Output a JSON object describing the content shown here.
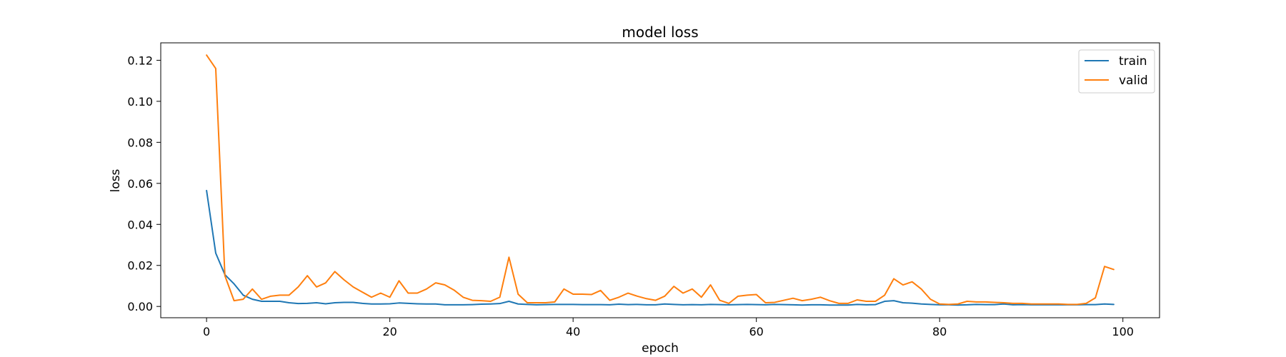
{
  "chart_data": {
    "type": "line",
    "title": "model loss",
    "xlabel": "epoch",
    "ylabel": "loss",
    "xlim": [
      -5,
      104
    ],
    "ylim": [
      -0.0055,
      0.1285
    ],
    "xticks": [
      0,
      20,
      40,
      60,
      80,
      100
    ],
    "xtick_labels": [
      "0",
      "20",
      "40",
      "60",
      "80",
      "100"
    ],
    "yticks": [
      0.0,
      0.02,
      0.04,
      0.06,
      0.08,
      0.1,
      0.12
    ],
    "ytick_labels": [
      "0.00",
      "0.02",
      "0.04",
      "0.06",
      "0.08",
      "0.10",
      "0.12"
    ],
    "grid": false,
    "legend_position": "top-right",
    "series": [
      {
        "name": "train",
        "color": "#1f77b4",
        "x": [
          0,
          1,
          2,
          3,
          4,
          5,
          6,
          7,
          8,
          9,
          10,
          11,
          12,
          13,
          14,
          15,
          16,
          17,
          18,
          19,
          20,
          21,
          22,
          23,
          24,
          25,
          26,
          27,
          28,
          29,
          30,
          31,
          32,
          33,
          34,
          35,
          36,
          37,
          38,
          39,
          40,
          41,
          42,
          43,
          44,
          45,
          46,
          47,
          48,
          49,
          50,
          51,
          52,
          53,
          54,
          55,
          56,
          57,
          58,
          59,
          60,
          61,
          62,
          63,
          64,
          65,
          66,
          67,
          68,
          69,
          70,
          71,
          72,
          73,
          74,
          75,
          76,
          77,
          78,
          79,
          80,
          81,
          82,
          83,
          84,
          85,
          86,
          87,
          88,
          89,
          90,
          91,
          92,
          93,
          94,
          95,
          96,
          97,
          98,
          99
        ],
        "values": [
          0.0565,
          0.026,
          0.0155,
          0.011,
          0.0055,
          0.0035,
          0.0025,
          0.0025,
          0.0025,
          0.0018,
          0.0014,
          0.0015,
          0.0018,
          0.0013,
          0.0018,
          0.002,
          0.002,
          0.0015,
          0.0012,
          0.0012,
          0.0013,
          0.0017,
          0.0015,
          0.0013,
          0.0012,
          0.0012,
          0.0008,
          0.0008,
          0.0008,
          0.0009,
          0.0011,
          0.0012,
          0.0014,
          0.0025,
          0.0012,
          0.001,
          0.0008,
          0.0009,
          0.001,
          0.001,
          0.001,
          0.0009,
          0.0009,
          0.0009,
          0.0008,
          0.0011,
          0.0009,
          0.001,
          0.0008,
          0.0008,
          0.0012,
          0.001,
          0.0008,
          0.0009,
          0.0008,
          0.001,
          0.0009,
          0.0008,
          0.0009,
          0.001,
          0.0009,
          0.0008,
          0.001,
          0.0009,
          0.0008,
          0.0007,
          0.0008,
          0.0008,
          0.0007,
          0.0007,
          0.0007,
          0.001,
          0.0008,
          0.0009,
          0.0025,
          0.0028,
          0.0018,
          0.0016,
          0.0012,
          0.001,
          0.0008,
          0.0008,
          0.0007,
          0.0008,
          0.001,
          0.0009,
          0.0009,
          0.0012,
          0.0008,
          0.0009,
          0.0008,
          0.0008,
          0.0008,
          0.0008,
          0.0008,
          0.0008,
          0.0009,
          0.0009,
          0.0012,
          0.001
        ]
      },
      {
        "name": "valid",
        "color": "#ff7f0e",
        "x": [
          0,
          1,
          2,
          3,
          4,
          5,
          6,
          7,
          8,
          9,
          10,
          11,
          12,
          13,
          14,
          15,
          16,
          17,
          18,
          19,
          20,
          21,
          22,
          23,
          24,
          25,
          26,
          27,
          28,
          29,
          30,
          31,
          32,
          33,
          34,
          35,
          36,
          37,
          38,
          39,
          40,
          41,
          42,
          43,
          44,
          45,
          46,
          47,
          48,
          49,
          50,
          51,
          52,
          53,
          54,
          55,
          56,
          57,
          58,
          59,
          60,
          61,
          62,
          63,
          64,
          65,
          66,
          67,
          68,
          69,
          70,
          71,
          72,
          73,
          74,
          75,
          76,
          77,
          78,
          79,
          80,
          81,
          82,
          83,
          84,
          85,
          86,
          87,
          88,
          89,
          90,
          91,
          92,
          93,
          94,
          95,
          96,
          97,
          98,
          99
        ],
        "values": [
          0.1225,
          0.116,
          0.015,
          0.0028,
          0.0035,
          0.0085,
          0.0035,
          0.005,
          0.0055,
          0.0055,
          0.0095,
          0.015,
          0.0095,
          0.0115,
          0.017,
          0.013,
          0.0095,
          0.007,
          0.0045,
          0.0065,
          0.0045,
          0.0125,
          0.0065,
          0.0065,
          0.0085,
          0.0115,
          0.0105,
          0.008,
          0.0045,
          0.003,
          0.0028,
          0.0025,
          0.0045,
          0.024,
          0.006,
          0.0018,
          0.0018,
          0.0018,
          0.0022,
          0.0085,
          0.006,
          0.006,
          0.0058,
          0.0078,
          0.003,
          0.0045,
          0.0065,
          0.005,
          0.0038,
          0.003,
          0.005,
          0.0098,
          0.0065,
          0.0085,
          0.0045,
          0.0105,
          0.003,
          0.0015,
          0.005,
          0.0055,
          0.0058,
          0.0018,
          0.002,
          0.003,
          0.004,
          0.0028,
          0.0035,
          0.0045,
          0.0028,
          0.0015,
          0.0015,
          0.0032,
          0.0025,
          0.0025,
          0.0055,
          0.0135,
          0.0105,
          0.012,
          0.0085,
          0.0035,
          0.0012,
          0.001,
          0.0012,
          0.0025,
          0.0022,
          0.0022,
          0.002,
          0.0018,
          0.0015,
          0.0015,
          0.0012,
          0.0012,
          0.0012,
          0.0012,
          0.001,
          0.001,
          0.0015,
          0.0042,
          0.0195,
          0.018
        ]
      }
    ]
  }
}
